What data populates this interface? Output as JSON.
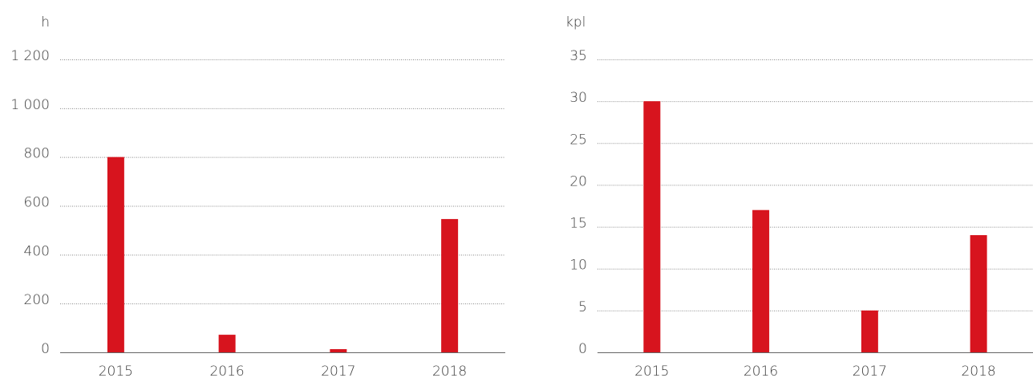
{
  "chart_data": [
    {
      "type": "bar",
      "y_label": "h",
      "categories": [
        "2015",
        "2016",
        "2017",
        "2018"
      ],
      "values": [
        800,
        72,
        13,
        546
      ],
      "color": "#d7141e",
      "ylim": [
        0,
        1200
      ],
      "yticks": [
        0,
        200,
        400,
        600,
        800,
        {
          "value": 1000,
          "label": "1 000"
        },
        {
          "value": 1200,
          "label": "1 200"
        }
      ],
      "grid": true
    },
    {
      "type": "bar",
      "y_label": "kpl",
      "categories": [
        "2015",
        "2016",
        "2017",
        "2018"
      ],
      "values": [
        30,
        17,
        5,
        14
      ],
      "color": "#d7141e",
      "ylim": [
        0,
        35
      ],
      "yticks": [
        0,
        5,
        10,
        15,
        20,
        25,
        30,
        35
      ],
      "grid": true
    }
  ]
}
